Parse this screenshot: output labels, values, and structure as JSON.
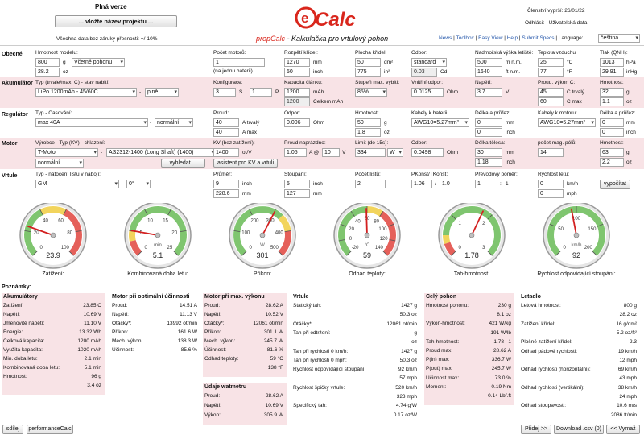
{
  "header": {
    "edition": "Plná verze",
    "project_button": "... vložte název projektu ...",
    "disclaimer": "Všechna data bez záruky přesnosti: +/-10%",
    "logo": "eCalc",
    "subtitle_brand": "propCalc",
    "subtitle_rest": " - Kalkulačka pro vrtulový pohon",
    "membership": "Členství vyprší: 26/01/22",
    "logout": "Odhlásit - Uživatelská data",
    "nav": [
      "News",
      "Toolbox",
      "Easy View",
      "Help",
      "Submit Specs"
    ],
    "language_label": "Language:",
    "language_value": "čeština"
  },
  "general": {
    "title": "Obecné",
    "weight_label": "Hmotnost modelu:",
    "weight": "800",
    "weight_unit": "g",
    "weight_mode": "Včetně pohonu",
    "weight_oz": "28.2",
    "weight_oz_unit": "oz",
    "motors_label": "Počet motorů:",
    "motors": "1",
    "motors_note": "(na jednu baterii)",
    "span_label": "Rozpětí křídel:",
    "span_mm": "1270",
    "span_mm_unit": "mm",
    "span_in": "50",
    "span_in_unit": "inch",
    "area_label": "Plocha křídel:",
    "area_dm": "50",
    "area_dm_unit": "dm²",
    "area_in": "775",
    "area_in_unit": "in²",
    "drag_label": "Odpor:",
    "drag": "standard",
    "drag_cd": "0.03",
    "drag_cd_unit": "Cd",
    "alt_label": "Nadmořská výška letiště:",
    "alt_m": "500",
    "alt_m_unit": "m n.m.",
    "alt_ft": "1640",
    "alt_ft_unit": "ft n.m.",
    "temp_label": "Teplota vzduchu",
    "temp_c": "25",
    "temp_c_unit": "°C",
    "temp_f": "77",
    "temp_f_unit": "°F",
    "qnh_label": "Tlak (QNH):",
    "qnh_hpa": "1013",
    "qnh_hpa_unit": "hPa",
    "qnh_inhg": "29.91",
    "qnh_inhg_unit": "inHg"
  },
  "battery": {
    "title": "Akumulátor",
    "type_label": "Typ (trvale/max. C) - stav nabití:",
    "type": "LiPo 1200mAh - 45/60C",
    "charge": "plně",
    "config_label": "Konfigurace:",
    "config_s": "3",
    "config_s_unit": "S",
    "config_p": "1",
    "config_p_unit": "P",
    "cap_label": "Kapacita článku:",
    "cap": "1200",
    "cap_unit": "mAh",
    "cap_total": "1200",
    "cap_total_unit": "Celkem mAh",
    "dod_label": "Stupeň max. vybití:",
    "dod": "85%",
    "ri_label": "Vnitřní odpor:",
    "ri": "0.0125",
    "ri_unit": "Ohm",
    "volt_label": "Napětí:",
    "volt": "3.7",
    "volt_unit": "V",
    "c_label": "Proud. výkon C:",
    "c_cont": "45",
    "c_cont_unit": "C trvalý",
    "c_max": "60",
    "c_max_unit": "C max",
    "mass_label": "Hmotnost:",
    "mass_g": "32",
    "mass_g_unit": "g",
    "mass_oz": "1.1",
    "mass_oz_unit": "oz"
  },
  "esc": {
    "title": "Regulátor",
    "type_label": "Typ - Časování:",
    "type": "max 40A",
    "timing": "normální",
    "cur_label": "Proud:",
    "cur_cont": "40",
    "cur_cont_unit": "A trvalý",
    "cur_max": "40",
    "cur_max_unit": "A max",
    "res_label": "Odpor:",
    "res": "0.006",
    "res_unit": "Ohm",
    "mass_label": "Hmotnost:",
    "mass_g": "50",
    "mass_g_unit": "g",
    "mass_oz": "1.8",
    "mass_oz_unit": "oz",
    "wire_bat_label": "Kabely k baterii:",
    "wire_bat": "AWG10=5.27mm²",
    "wire_bat_len": "0",
    "wire_bat_len_unit": "mm",
    "wire_bat_len_in": "0",
    "wire_bat_len_in_unit": "inch",
    "len_label": "Délka a průřez:",
    "wire_mot_label": "Kabely k motoru:",
    "wire_mot": "AWG10=5.27mm²",
    "wire_mot_len": "0",
    "wire_mot_len_unit": "mm",
    "wire_mot_len_in": "0",
    "wire_mot_len_in_unit": "inch"
  },
  "motor": {
    "title": "Motor",
    "type_label": "Výrobce - Typ (KV) - chlazení:",
    "maker": "T-Motor",
    "model": "AS2312-1400 (Long Shaft) (1400)",
    "cooling": "normální",
    "search_button": "vyhledat ...",
    "kv_label": "KV (bez zatížení):",
    "kv": "1400",
    "kv_unit": "ot/V",
    "kv_button": "asistent pro KV a vrtuli",
    "noload_label": "Proud naprázdno:",
    "noload_a": "1.05",
    "noload_at": "A @",
    "noload_v": "10",
    "noload_v_unit": "V",
    "limit_label": "Limit (do 15s):",
    "limit": "334",
    "limit_unit": "W",
    "res_label": "Odpor:",
    "res": "0.0498",
    "res_unit": "Ohm",
    "case_label": "Délka tělesa:",
    "case_mm": "30",
    "case_mm_unit": "mm",
    "case_in": "1.18",
    "case_in_unit": "inch",
    "poles_label": "počet mag. pólů:",
    "poles": "14",
    "mass_label": "Hmotnost:",
    "mass_g": "63",
    "mass_g_unit": "g",
    "mass_oz": "2.2",
    "mass_oz_unit": "oz"
  },
  "prop": {
    "title": "Vrtule",
    "type_label": "Typ - natočení listu v nábojí:",
    "type": "GM",
    "angle": "0°",
    "dia_label": "Průměr:",
    "dia_in": "9",
    "dia_in_unit": "inch",
    "dia_mm": "228.6",
    "dia_mm_unit": "mm",
    "pitch_label": "Stoupání:",
    "pitch_in": "5",
    "pitch_in_unit": "inch",
    "pitch_mm": "127",
    "pitch_mm_unit": "mm",
    "blades_label": "Počet listů:",
    "blades": "2",
    "pconst_label": "PKonst/TKonst:",
    "pconst": "1.06",
    "pconst_sep": "/",
    "tconst": "1.0",
    "gear_label": "Převodový poměr:",
    "gear_a": "1",
    "gear_sep": ":",
    "gear_b": "1",
    "speed_label": "Rychlost letu:",
    "speed_kmh": "0",
    "speed_kmh_unit": "km/h",
    "speed_mph": "0",
    "speed_mph_unit": "mph",
    "calc_button": "vypočítat"
  },
  "gauges": [
    {
      "caption": "Zatížení:",
      "value": "23.9",
      "min": 0,
      "max": 100,
      "reading": 23.9,
      "ticks": [
        "0",
        "20",
        "40",
        "60",
        "80",
        "100"
      ],
      "unit": "",
      "green": [
        0,
        40
      ],
      "yellow": [
        40,
        60
      ],
      "red": [
        60,
        100
      ]
    },
    {
      "caption": "Kombinovaná doba letu:",
      "value": "5.1",
      "min": 0,
      "max": 25,
      "reading": 5.1,
      "ticks": [
        "0",
        "5",
        "10",
        "15",
        "20",
        "25"
      ],
      "unit": "min",
      "green": [
        5,
        25
      ],
      "yellow": [
        3,
        5
      ],
      "red": [
        0,
        3
      ]
    },
    {
      "caption": "Příkon:",
      "value": "301",
      "min": 0,
      "max": 500,
      "reading": 301,
      "ticks": [
        "0",
        "100",
        "200",
        "300",
        "400",
        "500"
      ],
      "unit": "W",
      "green": [
        0,
        334
      ],
      "yellow": [
        334,
        400
      ],
      "red": [
        400,
        500
      ]
    },
    {
      "caption": "Odhad teploty:",
      "value": "59",
      "min": -20,
      "max": 140,
      "reading": 59,
      "ticks": [
        "-20",
        "0",
        "20",
        "40",
        "60",
        "80",
        "100",
        "120",
        "140"
      ],
      "unit": "°C",
      "green": [
        -20,
        60
      ],
      "yellow": [
        60,
        80
      ],
      "red": [
        80,
        140
      ]
    },
    {
      "caption": "Tah-hmotnost:",
      "value": "1.78",
      "min": 0,
      "max": 3,
      "reading": 1.78,
      "ticks": [
        "0",
        "1",
        "2",
        "3"
      ],
      "unit": "",
      "green": [
        0.5,
        3
      ],
      "yellow": [
        0.3,
        0.5
      ],
      "red": [
        0,
        0.3
      ]
    },
    {
      "caption": "Rychlost odpovídající stoupání:",
      "value": "92",
      "min": 0,
      "max": 200,
      "reading": 92,
      "ticks": [
        "0",
        "50",
        "100",
        "150",
        "200"
      ],
      "unit": "km/h",
      "green": [
        0,
        200
      ],
      "yellow": [],
      "red": []
    }
  ],
  "results": {
    "notes_label": "Poznámky:",
    "battery": {
      "title": "Akumulátory",
      "rows": [
        [
          "Zatížení:",
          "23.85 C"
        ],
        [
          "Napětí:",
          "10.69 V"
        ],
        [
          "Jmenovité napětí:",
          "11.10 V"
        ],
        [
          "Energie:",
          "13.32 Wh"
        ],
        [
          "Celková kapacita:",
          "1200 mAh"
        ],
        [
          "Využitá kapacita:",
          "1020 mAh"
        ],
        [
          "Min. doba letu:",
          "2.1 min"
        ],
        [
          "Kombinovaná doba letu:",
          "5.1 min"
        ],
        [
          "Hmotnost:",
          "96 g"
        ],
        [
          "",
          "3.4 oz"
        ]
      ]
    },
    "motor_eff": {
      "title": "Motor při optimální účinnosti",
      "rows": [
        [
          "Proud:",
          "14.51 A"
        ],
        [
          "Napětí:",
          "11.13 V"
        ],
        [
          "Otáčky*:",
          "13992 ot/min"
        ],
        [
          "Příkon:",
          "161.6 W"
        ],
        [
          "Mech. výkon:",
          "138.3 W"
        ],
        [
          "Účinnost:",
          "85.6 %"
        ]
      ]
    },
    "motor_max": {
      "title": "Motor při max. výkonu",
      "rows": [
        [
          "Proud:",
          "28.62 A"
        ],
        [
          "Napětí:",
          "10.52 V"
        ],
        [
          "Otáčky*:",
          "12061 ot/min"
        ],
        [
          "Příkon:",
          "301.1 W"
        ],
        [
          "Mech. výkon:",
          "245.7 W"
        ],
        [
          "Účinnost:",
          "81.6 %"
        ],
        [
          "Odhad teploty:",
          "59 °C"
        ],
        [
          "",
          "138 °F"
        ]
      ]
    },
    "wattmeter": {
      "title": "Údaje watmetru",
      "rows": [
        [
          "Proud:",
          "28.62 A"
        ],
        [
          "Napětí:",
          "10.69 V"
        ],
        [
          "Výkon:",
          "305.9 W"
        ]
      ]
    },
    "prop": {
      "title": "Vrtule",
      "rows": [
        [
          "Statický tah:",
          "1427 g"
        ],
        [
          "",
          "50.3 oz"
        ],
        [
          "Otáčky*:",
          "12061 ot/min"
        ],
        [
          "Tah při odtržení:",
          "- g"
        ],
        [
          "",
          "- oz"
        ],
        [
          "Tah při rychlosti 0 km/h:",
          "1427 g"
        ],
        [
          "Tah při rychlosti 0 mph:",
          "50.3 oz"
        ],
        [
          "Rychlost odpovídající stoupání:",
          "92 km/h"
        ],
        [
          "",
          "57 mph"
        ],
        [
          "Rychlost špičky vrtule:",
          "520 km/h"
        ],
        [
          "",
          "323 mph"
        ],
        [
          "Specifický tah:",
          "4.74 g/W"
        ],
        [
          "",
          "0.17 oz/W"
        ]
      ]
    },
    "drive": {
      "title": "Celý pohon",
      "rows": [
        [
          "Hmotnost pohonu:",
          "230 g"
        ],
        [
          "",
          "8.1 oz"
        ],
        [
          "Výkon-hmotnost:",
          "421 W/kg"
        ],
        [
          "",
          "191 W/lb"
        ],
        [
          "Tah-hmotnost:",
          "1.78 : 1"
        ],
        [
          "Proud max:",
          "28.62 A"
        ],
        [
          "P(in) max:",
          "336.7 W"
        ],
        [
          "P(out) max:",
          "245.7 W"
        ],
        [
          "Účinnost max:",
          "73.0 %"
        ],
        [
          "Moment:",
          "0.19 Nm"
        ],
        [
          "",
          "0.14 Lbf.ft"
        ]
      ]
    },
    "airframe": {
      "title": "Letadlo",
      "rows": [
        [
          "Letová hmotnost:",
          "800 g"
        ],
        [
          "",
          "28.2 oz"
        ],
        [
          "Zatížení křídel:",
          "16 g/dm²"
        ],
        [
          "",
          "5.2 oz/ft²"
        ],
        [
          "Plošné zatížení křídel:",
          "2.3"
        ],
        [
          "Odhad pádové rychlosti:",
          "19 km/h"
        ],
        [
          "",
          "12 mph"
        ],
        [
          "Odhad rychlosti (horizontální):",
          "69 km/h"
        ],
        [
          "",
          "43 mph"
        ],
        [
          "Odhad rychlosti (vertikální):",
          "38 km/h"
        ],
        [
          "",
          "24 mph"
        ],
        [
          "Odhad stoupavosti:",
          "10.6 m/s"
        ],
        [
          "",
          "2086 ft/min"
        ]
      ]
    }
  },
  "footer": {
    "share": "sdílej",
    "perf": "performanceCalc",
    "add": "Přidej >>",
    "download": "Download .csv (0)",
    "clear": "<< Vymaž"
  }
}
